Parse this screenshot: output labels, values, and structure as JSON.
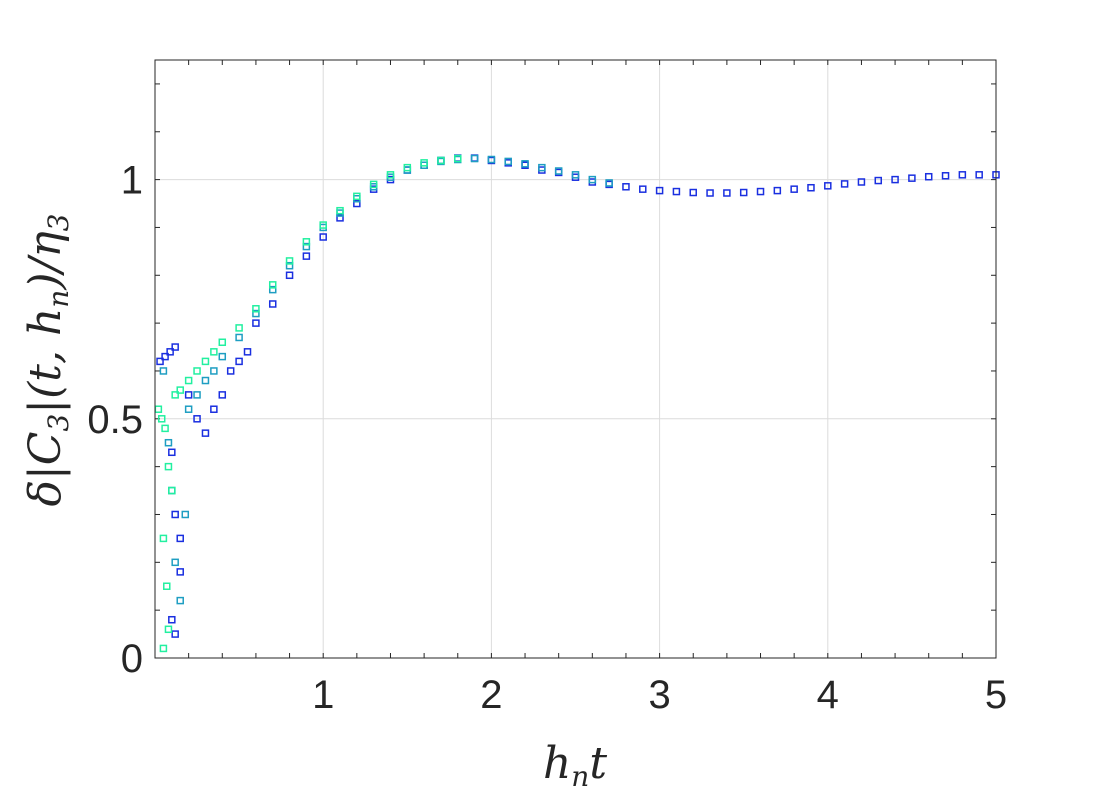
{
  "chart_data": {
    "type": "scatter",
    "xlabel": "h_n t",
    "ylabel": "δ|C_3|(t, h_n)/η_3",
    "xlim": [
      0,
      5
    ],
    "ylim": [
      0,
      1.25
    ],
    "x_ticks": [
      {
        "value": 1,
        "label": "1"
      },
      {
        "value": 2,
        "label": "2"
      },
      {
        "value": 3,
        "label": "3"
      },
      {
        "value": 4,
        "label": "4"
      },
      {
        "value": 5,
        "label": "5"
      }
    ],
    "y_ticks": [
      {
        "value": 0,
        "label": "0"
      },
      {
        "value": 0.5,
        "label": "0.5"
      },
      {
        "value": 1,
        "label": "1"
      }
    ],
    "grid": true,
    "marker": "open-square",
    "colors": {
      "far_series": "#1a2fe0",
      "mid_series": "#1e9ec2",
      "near_series": "#22f0a0",
      "axis": "#262626",
      "grid": "#dcdcdc"
    },
    "series": [
      {
        "color": "#1a2fe0",
        "points": [
          [
            0.03,
            0.62
          ],
          [
            0.06,
            0.63
          ],
          [
            0.09,
            0.64
          ],
          [
            0.12,
            0.65
          ],
          [
            0.1,
            0.43
          ],
          [
            0.12,
            0.3
          ],
          [
            0.15,
            0.25
          ],
          [
            0.1,
            0.08
          ],
          [
            0.12,
            0.05
          ],
          [
            0.15,
            0.18
          ],
          [
            0.2,
            0.55
          ],
          [
            0.25,
            0.5
          ],
          [
            0.3,
            0.47
          ],
          [
            0.35,
            0.52
          ],
          [
            0.4,
            0.55
          ],
          [
            0.45,
            0.6
          ],
          [
            0.5,
            0.62
          ],
          [
            0.55,
            0.64
          ],
          [
            0.6,
            0.7
          ],
          [
            0.7,
            0.74
          ],
          [
            0.8,
            0.8
          ],
          [
            0.9,
            0.84
          ],
          [
            1.0,
            0.88
          ],
          [
            1.1,
            0.92
          ],
          [
            1.2,
            0.95
          ],
          [
            1.3,
            0.98
          ],
          [
            1.4,
            1.0
          ],
          [
            1.5,
            1.02
          ],
          [
            1.6,
            1.03
          ],
          [
            1.7,
            1.04
          ],
          [
            1.8,
            1.045
          ],
          [
            1.9,
            1.045
          ],
          [
            2.0,
            1.04
          ],
          [
            2.1,
            1.035
          ],
          [
            2.2,
            1.03
          ],
          [
            2.3,
            1.02
          ],
          [
            2.4,
            1.015
          ],
          [
            2.5,
            1.005
          ],
          [
            2.6,
            0.995
          ],
          [
            2.7,
            0.99
          ],
          [
            2.8,
            0.985
          ],
          [
            2.9,
            0.98
          ],
          [
            3.0,
            0.977
          ],
          [
            3.1,
            0.975
          ],
          [
            3.2,
            0.973
          ],
          [
            3.3,
            0.972
          ],
          [
            3.4,
            0.972
          ],
          [
            3.5,
            0.973
          ],
          [
            3.6,
            0.975
          ],
          [
            3.7,
            0.977
          ],
          [
            3.8,
            0.98
          ],
          [
            3.9,
            0.983
          ],
          [
            4.0,
            0.987
          ],
          [
            4.1,
            0.991
          ],
          [
            4.2,
            0.995
          ],
          [
            4.3,
            0.998
          ],
          [
            4.4,
            1.0
          ],
          [
            4.5,
            1.003
          ],
          [
            4.6,
            1.006
          ],
          [
            4.7,
            1.008
          ],
          [
            4.8,
            1.01
          ],
          [
            4.9,
            1.01
          ],
          [
            5.0,
            1.01
          ]
        ]
      },
      {
        "color": "#1e9ec2",
        "points": [
          [
            0.05,
            0.6
          ],
          [
            0.08,
            0.45
          ],
          [
            0.1,
            0.35
          ],
          [
            0.12,
            0.2
          ],
          [
            0.15,
            0.12
          ],
          [
            0.18,
            0.3
          ],
          [
            0.2,
            0.52
          ],
          [
            0.25,
            0.55
          ],
          [
            0.3,
            0.58
          ],
          [
            0.35,
            0.6
          ],
          [
            0.4,
            0.63
          ],
          [
            0.5,
            0.67
          ],
          [
            0.6,
            0.72
          ],
          [
            0.7,
            0.77
          ],
          [
            0.8,
            0.82
          ],
          [
            0.9,
            0.86
          ],
          [
            1.0,
            0.9
          ],
          [
            1.1,
            0.93
          ],
          [
            1.2,
            0.96
          ],
          [
            1.3,
            0.985
          ],
          [
            1.4,
            1.005
          ],
          [
            1.5,
            1.02
          ],
          [
            1.6,
            1.03
          ],
          [
            1.7,
            1.038
          ],
          [
            1.8,
            1.042
          ],
          [
            1.9,
            1.044
          ],
          [
            2.0,
            1.042
          ],
          [
            2.1,
            1.038
          ],
          [
            2.2,
            1.033
          ],
          [
            2.3,
            1.025
          ],
          [
            2.4,
            1.018
          ],
          [
            2.5,
            1.01
          ],
          [
            2.6,
            1.0
          ],
          [
            2.7,
            0.993
          ]
        ]
      },
      {
        "color": "#22f0a0",
        "points": [
          [
            0.02,
            0.52
          ],
          [
            0.04,
            0.5
          ],
          [
            0.06,
            0.48
          ],
          [
            0.08,
            0.4
          ],
          [
            0.1,
            0.35
          ],
          [
            0.05,
            0.25
          ],
          [
            0.07,
            0.15
          ],
          [
            0.05,
            0.02
          ],
          [
            0.08,
            0.06
          ],
          [
            0.12,
            0.55
          ],
          [
            0.15,
            0.56
          ],
          [
            0.2,
            0.58
          ],
          [
            0.25,
            0.6
          ],
          [
            0.3,
            0.62
          ],
          [
            0.35,
            0.64
          ],
          [
            0.4,
            0.66
          ],
          [
            0.5,
            0.69
          ],
          [
            0.6,
            0.73
          ],
          [
            0.7,
            0.78
          ],
          [
            0.8,
            0.83
          ],
          [
            0.9,
            0.87
          ],
          [
            1.0,
            0.905
          ],
          [
            1.1,
            0.935
          ],
          [
            1.2,
            0.965
          ],
          [
            1.3,
            0.99
          ],
          [
            1.4,
            1.01
          ],
          [
            1.5,
            1.025
          ],
          [
            1.6,
            1.035
          ],
          [
            1.7,
            1.04
          ],
          [
            1.8,
            1.044
          ]
        ]
      }
    ]
  }
}
